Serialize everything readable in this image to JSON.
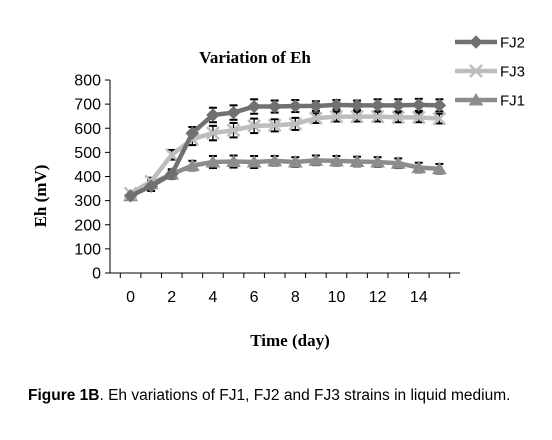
{
  "chart_data": {
    "type": "line",
    "title": "Variation of Eh",
    "xlabel": "Time (day)",
    "ylabel": "Eh (mV)",
    "xlim": [
      -1,
      16
    ],
    "ylim": [
      0,
      800
    ],
    "xticks": [
      0,
      2,
      4,
      6,
      8,
      10,
      12,
      14
    ],
    "yticks": [
      0,
      100,
      200,
      300,
      400,
      500,
      600,
      700,
      800
    ],
    "grid": false,
    "legend_position": "top-right",
    "x": [
      0,
      1,
      2,
      3,
      4,
      5,
      6,
      7,
      8,
      9,
      10,
      11,
      12,
      13,
      14,
      15
    ],
    "series": [
      {
        "name": "FJ2",
        "marker": "diamond",
        "color": "#707070",
        "values": [
          320,
          360,
          410,
          580,
          655,
          665,
          690,
          690,
          692,
          692,
          697,
          695,
          695,
          695,
          697,
          695
        ],
        "error": [
          0,
          20,
          20,
          25,
          30,
          30,
          30,
          25,
          25,
          20,
          20,
          20,
          25,
          25,
          25,
          25
        ]
      },
      {
        "name": "FJ3",
        "marker": "x",
        "color": "#bdbdbd",
        "values": [
          330,
          380,
          490,
          555,
          580,
          592,
          610,
          612,
          618,
          642,
          648,
          648,
          648,
          645,
          645,
          640
        ],
        "error": [
          0,
          15,
          20,
          25,
          30,
          30,
          30,
          25,
          25,
          20,
          20,
          20,
          20,
          20,
          20,
          20
        ]
      },
      {
        "name": "FJ1",
        "marker": "triangle",
        "color": "#8c8c8c",
        "values": [
          320,
          370,
          410,
          445,
          460,
          462,
          460,
          465,
          460,
          467,
          465,
          462,
          460,
          455,
          437,
          432
        ],
        "error": [
          0,
          15,
          15,
          20,
          25,
          25,
          25,
          20,
          20,
          20,
          20,
          20,
          20,
          20,
          20,
          20
        ]
      }
    ]
  },
  "caption": {
    "label": "Figure 1B",
    "text": ". Eh variations of FJ1, FJ2 and FJ3 strains in liquid medium."
  }
}
